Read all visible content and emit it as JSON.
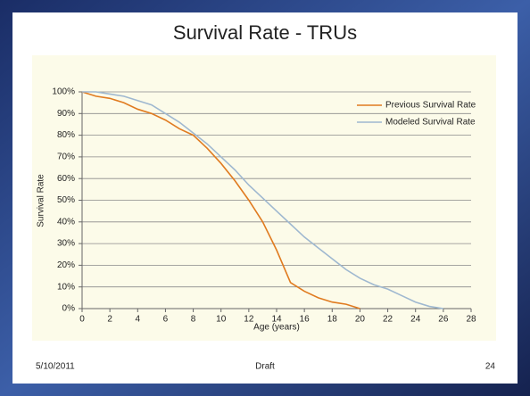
{
  "chart_data": {
    "type": "line",
    "title": "Survival Rate - TRUs",
    "x_label": "Age (years)",
    "y_label": "Survival Rate",
    "xlim": [
      0,
      28
    ],
    "xticks": [
      0,
      2,
      4,
      6,
      8,
      10,
      12,
      14,
      16,
      18,
      20,
      22,
      24,
      26,
      28
    ],
    "ylim": [
      0,
      100
    ],
    "yticks": [
      {
        "value": 0,
        "label": "0%"
      },
      {
        "value": 10,
        "label": "10%"
      },
      {
        "value": 20,
        "label": "20%"
      },
      {
        "value": 30,
        "label": "30%"
      },
      {
        "value": 40,
        "label": "40%"
      },
      {
        "value": 50,
        "label": "50%"
      },
      {
        "value": 60,
        "label": "60%"
      },
      {
        "value": 70,
        "label": "70%"
      },
      {
        "value": 80,
        "label": "80%"
      },
      {
        "value": 90,
        "label": "90%"
      },
      {
        "value": 100,
        "label": "100%"
      }
    ],
    "grid": true,
    "legend": "upper right",
    "series": [
      {
        "name": "Previous Survival Rate",
        "color": "#e07b20",
        "x": [
          0,
          1,
          2,
          3,
          4,
          5,
          6,
          7,
          8,
          9,
          10,
          11,
          12,
          13,
          14,
          15,
          16,
          17,
          18,
          19,
          20
        ],
        "values": [
          100,
          98,
          97,
          95,
          92,
          90,
          87,
          83,
          80,
          74,
          67,
          59,
          50,
          40,
          27,
          12,
          8,
          5,
          3,
          2,
          0
        ]
      },
      {
        "name": "Modeled Survival Rate",
        "color": "#9fb8d0",
        "x": [
          0,
          1,
          2,
          3,
          4,
          5,
          6,
          7,
          8,
          9,
          10,
          11,
          12,
          13,
          14,
          15,
          16,
          17,
          18,
          19,
          20,
          21,
          22,
          23,
          24,
          25,
          26
        ],
        "values": [
          100,
          100,
          99,
          98,
          96,
          94,
          90,
          86,
          81,
          76,
          70,
          64,
          57,
          51,
          45,
          39,
          33,
          28,
          23,
          18,
          14,
          11,
          9,
          6,
          3,
          1,
          0
        ]
      }
    ]
  },
  "footer": {
    "date": "5/10/2011",
    "center": "Draft",
    "page": "24"
  }
}
